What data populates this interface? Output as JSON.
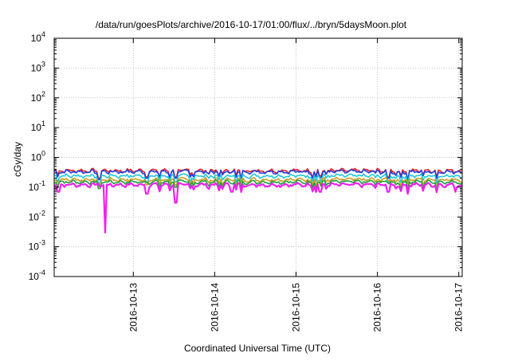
{
  "chart_data": {
    "type": "line",
    "title": "/data/run/goesPlots/archive/2016-10-17/01:00/flux/../bryn/5daysMoon.plot",
    "xlabel": "Coordinated Universal Time (UTC)",
    "ylabel": "cGy/day",
    "yscale": "log",
    "ylim": [
      0.0001,
      10000
    ],
    "y_ticks": [
      {
        "base": "10",
        "exp": "-4",
        "value": 0.0001
      },
      {
        "base": "10",
        "exp": "-3",
        "value": 0.001
      },
      {
        "base": "10",
        "exp": "-2",
        "value": 0.01
      },
      {
        "base": "10",
        "exp": "-1",
        "value": 0.1
      },
      {
        "base": "10",
        "exp": "0",
        "value": 1
      },
      {
        "base": "10",
        "exp": "1",
        "value": 10
      },
      {
        "base": "10",
        "exp": "2",
        "value": 100
      },
      {
        "base": "10",
        "exp": "3",
        "value": 1000
      },
      {
        "base": "10",
        "exp": "4",
        "value": 10000
      }
    ],
    "xlim": [
      "2016-10-12T00:40",
      "2016-10-17T01:00"
    ],
    "x_ticks": [
      "2016-10-13",
      "2016-10-14",
      "2016-10-15",
      "2016-10-16",
      "2016-10-17"
    ],
    "grid": true,
    "legend": "none",
    "series": [
      {
        "color": "#e8202a",
        "level": 0.36,
        "dips": [
          [
            "2016-10-12T14:00",
            0.2
          ],
          [
            "2016-10-13T04:00",
            0.22
          ],
          [
            "2016-10-13T12:30",
            0.22
          ],
          [
            "2016-10-15T07:00",
            0.24
          ],
          [
            "2016-10-16T03:00",
            0.22
          ]
        ]
      },
      {
        "color": "#2040e0",
        "level": 0.33,
        "dips": [
          [
            "2016-10-12T14:00",
            0.18
          ],
          [
            "2016-10-13T04:00",
            0.2
          ],
          [
            "2016-10-13T12:30",
            0.2
          ],
          [
            "2016-10-15T07:00",
            0.22
          ],
          [
            "2016-10-16T03:00",
            0.2
          ]
        ]
      },
      {
        "color": "#20c8d8",
        "level": 0.24,
        "dips": [
          [
            "2016-10-12T14:00",
            0.14
          ],
          [
            "2016-10-13T04:00",
            0.15
          ],
          [
            "2016-10-13T12:30",
            0.15
          ],
          [
            "2016-10-16T03:00",
            0.15
          ]
        ]
      },
      {
        "color": "#c8a020",
        "level": 0.18,
        "dips": [
          [
            "2016-10-12T14:00",
            0.11
          ],
          [
            "2016-10-13T04:00",
            0.12
          ],
          [
            "2016-10-13T12:30",
            0.12
          ]
        ]
      },
      {
        "color": "#20a040",
        "level": 0.15,
        "dips": [
          [
            "2016-10-12T14:00",
            0.09
          ],
          [
            "2016-10-13T12:30",
            0.1
          ]
        ]
      },
      {
        "color": "#f020f0",
        "level": 0.12,
        "dips": [
          [
            "2016-10-12T02:00",
            0.07
          ],
          [
            "2016-10-12T15:40",
            0.003
          ],
          [
            "2016-10-13T04:00",
            0.06
          ],
          [
            "2016-10-13T12:30",
            0.03
          ],
          [
            "2016-10-14T05:00",
            0.07
          ],
          [
            "2016-10-15T07:00",
            0.07
          ],
          [
            "2016-10-16T03:00",
            0.07
          ],
          [
            "2016-10-16T23:00",
            0.07
          ]
        ]
      }
    ]
  }
}
